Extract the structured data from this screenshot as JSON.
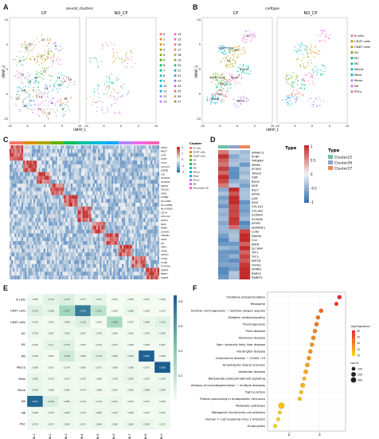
{
  "panels": {
    "a": {
      "letter": "A",
      "title": "seurat_clusters",
      "facets": [
        "CP",
        "NO_CP"
      ],
      "xlabel": "UMAP_1",
      "ylabel": "UMAP_2",
      "xticks": [
        "-10",
        "-5",
        "0",
        "5",
        "10",
        "-10",
        "-5",
        "0",
        "5",
        "10"
      ],
      "yticks": [
        "10",
        "5",
        "0",
        "-5",
        "-10"
      ],
      "legend": [
        "0",
        "1",
        "2",
        "3",
        "4",
        "5",
        "6",
        "7",
        "8",
        "9",
        "10",
        "11",
        "12",
        "13",
        "14",
        "15",
        "16",
        "17",
        "18",
        "19",
        "20",
        "21",
        "22",
        "23",
        "24",
        "25",
        "26",
        "27"
      ],
      "cluster_labels": [
        "20",
        "27",
        "9",
        "1",
        "2",
        "22",
        "24",
        "11",
        "13",
        "23",
        "18",
        "0",
        "14",
        "4",
        "21",
        "12",
        "7",
        "26",
        "5",
        "25",
        "3",
        "8",
        "10",
        "6",
        "19",
        "16",
        "17",
        "15"
      ]
    },
    "b": {
      "letter": "B",
      "title": "celltype",
      "facets": [
        "CP",
        "NO_CP"
      ],
      "xlabel": "UMAP_1",
      "ylabel": "UMAP_2",
      "xticks": [
        "-10",
        "-5",
        "0",
        "5",
        "10",
        "-10",
        "-5",
        "0",
        "5",
        "10"
      ],
      "yticks": [
        "10",
        "5",
        "0",
        "-5",
        "-10"
      ],
      "legend": [
        "B cells",
        "CD4T cells",
        "CD8T cells",
        "DC",
        "M1",
        "M2",
        "Macro",
        "Mast",
        "Mono",
        "NK",
        "PSCs"
      ],
      "cell_labels": [
        "NK",
        "CD4T cells",
        "CD8T cells",
        "DC",
        "M2",
        "PSCs",
        "Macro",
        "Mast",
        "M1",
        "B cells",
        "Mono"
      ]
    },
    "c": {
      "letter": "C",
      "genes": [
        "CD52",
        "NKG7",
        "IL7R",
        "CCR7",
        "CCL5",
        "CXCL13",
        "GZMB",
        "LYZ",
        "S100A8",
        "S100A9",
        "PRSS1",
        "TAGLN",
        "CPA1",
        "CTRB2",
        "HLA-DRA",
        "HLA-DPB1",
        "HLA-DQB1",
        "CD74",
        "COL1A1",
        "IGHA1",
        "IGKC",
        "MZB1",
        "JCHAIN",
        "TPSAB1",
        "CPA3",
        "KIT",
        "SPP1",
        "APOE",
        "APOC1",
        "C1QA",
        "C1QB",
        "FCGR3A",
        "SFRP4",
        "MMP7",
        "SARAF"
      ],
      "legend_title": "Cluster",
      "legend": [
        "B cells",
        "CD4T cells",
        "CD8T cells",
        "DC",
        "M1",
        "M2",
        "Macro",
        "Mast",
        "Mono",
        "NK",
        "Pancreatic Stellate cells"
      ],
      "scale_ticks": [
        "2",
        "1",
        "0",
        "-1",
        "-2"
      ]
    },
    "d": {
      "letter": "D",
      "type_label": "Type",
      "genes": [
        "SPARCL1",
        "PCNP",
        "TMSB4X",
        "SPARC",
        "IFITM3",
        "TAGLN",
        "VWF",
        "RGS5",
        "MGP",
        "IFI27",
        "APOD",
        "LUM",
        "DCN",
        "COL1A1",
        "COL3A1",
        "S100A4",
        "S100A6",
        "SFRP2",
        "SERPINF1",
        "LCN2",
        "ANXA4",
        "CLU",
        "KRT8",
        "SLC4A4",
        "TFF1",
        "TFF3",
        "KRT18",
        "FXYD2",
        "SPINK1",
        "RAB10",
        "RABEP1"
      ],
      "legend_title": "Type",
      "legend": [
        "Cluster22",
        "Cluster26",
        "Cluster27"
      ],
      "scale_ticks": [
        "1",
        "0.5",
        "0",
        "-0.5",
        "-1"
      ]
    },
    "e": {
      "letter": "E",
      "rows": [
        "B cells",
        "CD4T cells",
        "CD8T cells",
        "DC",
        "M1",
        "M2",
        "Macro",
        "Mast",
        "Mono",
        "NA",
        "NK",
        "PSC"
      ],
      "cols": [
        "BL1",
        "BL2",
        "BL3",
        "BL4",
        "BL5",
        "BL6",
        "BL7",
        "BL8",
        "BL9"
      ],
      "values": [
        [
          0.065,
          0.119,
          0.153,
          0.077,
          0.101,
          0.043,
          0.059,
          0.053,
          0.018
        ],
        [
          0.142,
          0.098,
          0.347,
          0.784,
          0.256,
          0.044,
          0.086,
          0.038,
          0.014
        ],
        [
          0.075,
          0.054,
          0.089,
          0.138,
          0.035,
          0.328,
          0.037,
          0.088,
          0.129
        ],
        [
          0.076,
          0.067,
          0.092,
          0.067,
          0.078,
          0.056,
          0.061,
          0.076,
          0.084
        ],
        [
          0.033,
          0.11,
          0.132,
          0.053,
          0.074,
          0.071,
          0.058,
          0.058,
          0.061
        ],
        [
          0.078,
          0.053,
          0.195,
          0.084,
          0.119,
          0.082,
          0.093,
          0.892,
          0.068
        ],
        [
          0.068,
          0.057,
          0.074,
          0.069,
          0.071,
          0.066,
          0.086,
          0.073,
          0.908
        ],
        [
          0.095,
          0.073,
          0.071,
          0.075,
          0.058,
          0.076,
          0.091,
          0.075,
          0.078
        ],
        [
          0.099,
          0.066,
          0.081,
          0.074,
          0.068,
          0.067,
          0.065,
          0.088,
          0.084
        ],
        [
          0.871,
          0.158,
          0.085,
          0.074,
          0.079,
          0.091,
          0.054,
          0.072,
          0.058
        ],
        [
          0.066,
          0.072,
          0.092,
          0.074,
          0.082,
          0.079,
          0.069,
          0.049,
          0.063
        ],
        [
          0.074,
          0.072,
          0.081,
          0.073,
          0.084,
          0.068,
          0.081,
          0.093,
          0.071
        ]
      ],
      "scale_ticks": [
        "0.8",
        "0.6",
        "0.4",
        "0.2"
      ]
    },
    "f": {
      "letter": "F",
      "chart_data": {
        "type": "scatter",
        "categories": [
          "Oxidative phosphorylation",
          "Ribosome",
          "Chemical carcinogenesis − reactive oxygen species",
          "Diabetic cardiomyopathy",
          "Thermogenesis",
          "Prion disease",
          "Parkinson disease",
          "Non−alcoholic fatty liver disease",
          "Huntington disease",
          "Coronavirus disease − COVID−19",
          "Amyotrophic lateral sclerosis",
          "Alzheimer disease",
          "Retrograde endocannabinoid signaling",
          "Pathways of neurodegeneration − multiple diseases",
          "Tight junction",
          "Protein processing in endoplasmic reticulum",
          "Metabolic pathways",
          "Pathogenic Escherichia coli infection",
          "Human T−cell leukemia virus 1 infection",
          "Endocytosis"
        ],
        "x": [
          3.65,
          3.55,
          3.05,
          2.95,
          2.9,
          2.85,
          2.8,
          2.75,
          2.7,
          2.65,
          2.6,
          2.55,
          2.5,
          2.45,
          2.4,
          2.35,
          1.75,
          1.7,
          1.65,
          1.55
        ],
        "neglog10p": [
          30,
          28,
          22,
          20,
          19,
          18,
          17,
          16,
          16,
          15,
          14,
          13,
          12,
          12,
          11,
          11,
          10,
          9,
          8,
          8
        ],
        "count": [
          150,
          120,
          160,
          140,
          170,
          160,
          170,
          150,
          170,
          160,
          170,
          180,
          110,
          200,
          110,
          120,
          440,
          100,
          130,
          110
        ],
        "xticks": [
          2,
          3
        ],
        "xlim": [
          1.3,
          3.85
        ],
        "color_legend_title": "-log10(pvalue)",
        "color_ticks": [
          30,
          25,
          20,
          15,
          10
        ],
        "size_legend_title": "count",
        "size_ticks": [
          100,
          200,
          300
        ]
      }
    }
  },
  "colors": {
    "cluster_palette": [
      "#f8766d",
      "#e7851e",
      "#d09400",
      "#b2a100",
      "#89ac00",
      "#45b500",
      "#00bc51",
      "#00c087",
      "#00c0b2",
      "#00bcd6",
      "#00b3f2",
      "#29a3ff",
      "#9c8dff",
      "#d277ff",
      "#f166e8",
      "#ff61c7",
      "#ff6b9c",
      "#e98a5b",
      "#c7a13a",
      "#7fb53d",
      "#2fb875",
      "#23a9b8",
      "#4f8fd9",
      "#8f7ae0",
      "#c26bcc",
      "#e06a9a",
      "#d9a066",
      "#9a9a3a"
    ],
    "celltype_palette": [
      "#f8766d",
      "#db8e00",
      "#aea200",
      "#64b200",
      "#00bd5c",
      "#00c1a7",
      "#00bade",
      "#00a6ff",
      "#b385ff",
      "#ef67eb",
      "#ff63b6"
    ],
    "heat_high": "#c22a2a",
    "heat_mid": "#f2f2f2",
    "heat_low": "#2f6fb0",
    "teal_low": "#f4fbf2",
    "teal_high": "#1a5d8f",
    "dot_high": "#e8262c",
    "dot_low": "#f5d01a"
  }
}
